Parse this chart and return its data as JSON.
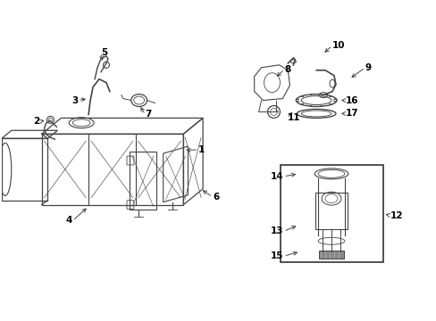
{
  "bg_color": "#ffffff",
  "line_color": "#444444",
  "text_color": "#000000",
  "fs": 7.5,
  "fig_width": 4.89,
  "fig_height": 3.6,
  "dpi": 100
}
